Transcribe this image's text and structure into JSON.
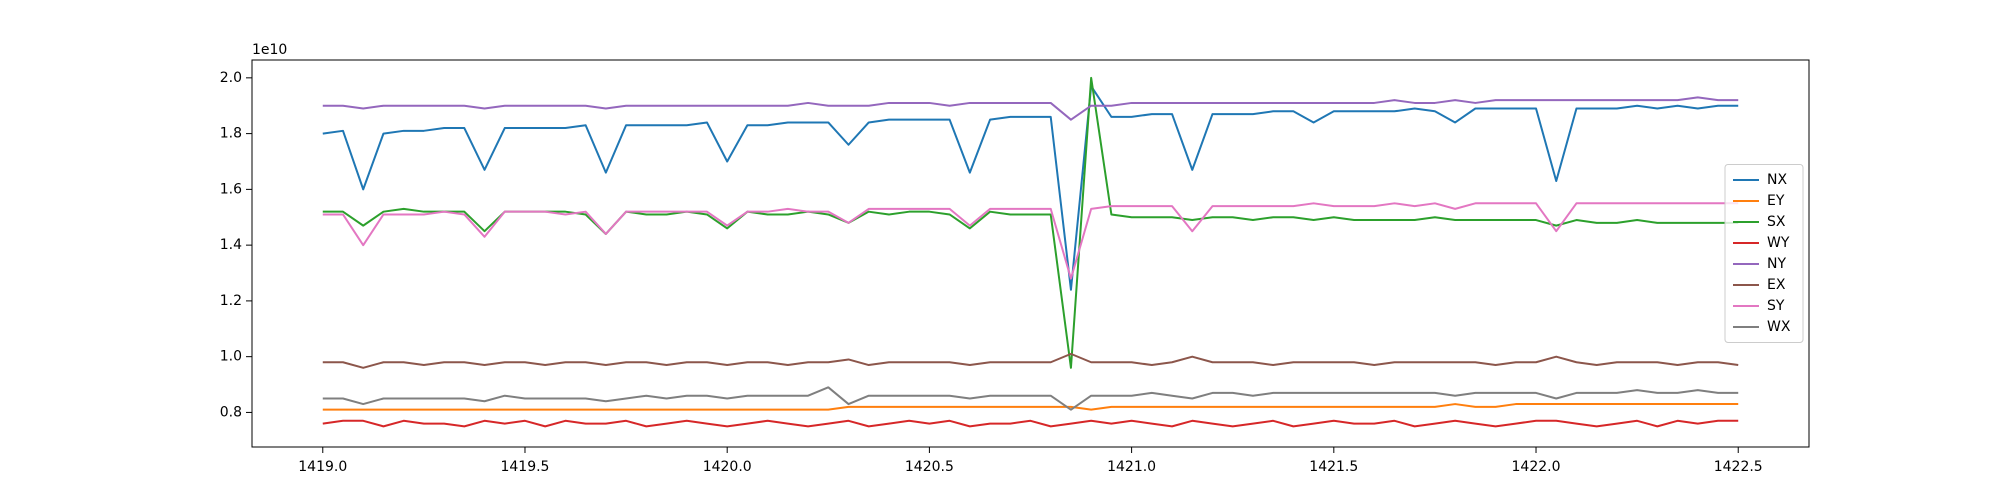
{
  "chart_data": {
    "type": "line",
    "y_offset_label": "1e10",
    "x": [
      1419.0,
      1419.05,
      1419.1,
      1419.15,
      1419.2,
      1419.25,
      1419.3,
      1419.35,
      1419.4,
      1419.45,
      1419.5,
      1419.55,
      1419.6,
      1419.65,
      1419.7,
      1419.75,
      1419.8,
      1419.85,
      1419.9,
      1419.95,
      1420.0,
      1420.05,
      1420.1,
      1420.15,
      1420.2,
      1420.25,
      1420.3,
      1420.35,
      1420.4,
      1420.45,
      1420.5,
      1420.55,
      1420.6,
      1420.65,
      1420.7,
      1420.75,
      1420.8,
      1420.85,
      1420.9,
      1420.95,
      1421.0,
      1421.05,
      1421.1,
      1421.15,
      1421.2,
      1421.25,
      1421.3,
      1421.35,
      1421.4,
      1421.45,
      1421.5,
      1421.55,
      1421.6,
      1421.65,
      1421.7,
      1421.75,
      1421.8,
      1421.85,
      1421.9,
      1421.95,
      1422.0,
      1422.05,
      1422.1,
      1422.15,
      1422.2,
      1422.25,
      1422.3,
      1422.35,
      1422.4,
      1422.45,
      1422.5
    ],
    "series": [
      {
        "name": "NX",
        "color": "#1f77b4",
        "values": [
          1.8,
          1.81,
          1.6,
          1.8,
          1.81,
          1.81,
          1.82,
          1.82,
          1.67,
          1.82,
          1.82,
          1.82,
          1.82,
          1.83,
          1.66,
          1.83,
          1.83,
          1.83,
          1.83,
          1.84,
          1.7,
          1.83,
          1.83,
          1.84,
          1.84,
          1.84,
          1.76,
          1.84,
          1.85,
          1.85,
          1.85,
          1.85,
          1.66,
          1.85,
          1.86,
          1.86,
          1.86,
          1.24,
          1.97,
          1.86,
          1.86,
          1.87,
          1.87,
          1.67,
          1.87,
          1.87,
          1.87,
          1.88,
          1.88,
          1.84,
          1.88,
          1.88,
          1.88,
          1.88,
          1.89,
          1.88,
          1.84,
          1.89,
          1.89,
          1.89,
          1.89,
          1.63,
          1.89,
          1.89,
          1.89,
          1.9,
          1.89,
          1.9,
          1.89,
          1.9,
          1.9
        ]
      },
      {
        "name": "EY",
        "color": "#ff7f0e",
        "values": [
          0.81,
          0.81,
          0.81,
          0.81,
          0.81,
          0.81,
          0.81,
          0.81,
          0.81,
          0.81,
          0.81,
          0.81,
          0.81,
          0.81,
          0.81,
          0.81,
          0.81,
          0.81,
          0.81,
          0.81,
          0.81,
          0.81,
          0.81,
          0.81,
          0.81,
          0.81,
          0.82,
          0.82,
          0.82,
          0.82,
          0.82,
          0.82,
          0.82,
          0.82,
          0.82,
          0.82,
          0.82,
          0.82,
          0.81,
          0.82,
          0.82,
          0.82,
          0.82,
          0.82,
          0.82,
          0.82,
          0.82,
          0.82,
          0.82,
          0.82,
          0.82,
          0.82,
          0.82,
          0.82,
          0.82,
          0.82,
          0.83,
          0.82,
          0.82,
          0.83,
          0.83,
          0.83,
          0.83,
          0.83,
          0.83,
          0.83,
          0.83,
          0.83,
          0.83,
          0.83,
          0.83
        ]
      },
      {
        "name": "SX",
        "color": "#2ca02c",
        "values": [
          1.52,
          1.52,
          1.47,
          1.52,
          1.53,
          1.52,
          1.52,
          1.52,
          1.45,
          1.52,
          1.52,
          1.52,
          1.52,
          1.51,
          1.44,
          1.52,
          1.51,
          1.51,
          1.52,
          1.51,
          1.46,
          1.52,
          1.51,
          1.51,
          1.52,
          1.51,
          1.48,
          1.52,
          1.51,
          1.52,
          1.52,
          1.51,
          1.46,
          1.52,
          1.51,
          1.51,
          1.51,
          0.96,
          2.0,
          1.51,
          1.5,
          1.5,
          1.5,
          1.49,
          1.5,
          1.5,
          1.49,
          1.5,
          1.5,
          1.49,
          1.5,
          1.49,
          1.49,
          1.49,
          1.49,
          1.5,
          1.49,
          1.49,
          1.49,
          1.49,
          1.49,
          1.47,
          1.49,
          1.48,
          1.48,
          1.49,
          1.48,
          1.48,
          1.48,
          1.48,
          1.48
        ]
      },
      {
        "name": "WY",
        "color": "#d62728",
        "values": [
          0.76,
          0.77,
          0.77,
          0.75,
          0.77,
          0.76,
          0.76,
          0.75,
          0.77,
          0.76,
          0.77,
          0.75,
          0.77,
          0.76,
          0.76,
          0.77,
          0.75,
          0.76,
          0.77,
          0.76,
          0.75,
          0.76,
          0.77,
          0.76,
          0.75,
          0.76,
          0.77,
          0.75,
          0.76,
          0.77,
          0.76,
          0.77,
          0.75,
          0.76,
          0.76,
          0.77,
          0.75,
          0.76,
          0.77,
          0.76,
          0.77,
          0.76,
          0.75,
          0.77,
          0.76,
          0.75,
          0.76,
          0.77,
          0.75,
          0.76,
          0.77,
          0.76,
          0.76,
          0.77,
          0.75,
          0.76,
          0.77,
          0.76,
          0.75,
          0.76,
          0.77,
          0.77,
          0.76,
          0.75,
          0.76,
          0.77,
          0.75,
          0.77,
          0.76,
          0.77,
          0.77
        ]
      },
      {
        "name": "NY",
        "color": "#9467bd",
        "values": [
          1.9,
          1.9,
          1.89,
          1.9,
          1.9,
          1.9,
          1.9,
          1.9,
          1.89,
          1.9,
          1.9,
          1.9,
          1.9,
          1.9,
          1.89,
          1.9,
          1.9,
          1.9,
          1.9,
          1.9,
          1.9,
          1.9,
          1.9,
          1.9,
          1.91,
          1.9,
          1.9,
          1.9,
          1.91,
          1.91,
          1.91,
          1.9,
          1.91,
          1.91,
          1.91,
          1.91,
          1.91,
          1.85,
          1.9,
          1.9,
          1.91,
          1.91,
          1.91,
          1.91,
          1.91,
          1.91,
          1.91,
          1.91,
          1.91,
          1.91,
          1.91,
          1.91,
          1.91,
          1.92,
          1.91,
          1.91,
          1.92,
          1.91,
          1.92,
          1.92,
          1.92,
          1.92,
          1.92,
          1.92,
          1.92,
          1.92,
          1.92,
          1.92,
          1.93,
          1.92,
          1.92
        ]
      },
      {
        "name": "EX",
        "color": "#8c564b",
        "values": [
          0.98,
          0.98,
          0.96,
          0.98,
          0.98,
          0.97,
          0.98,
          0.98,
          0.97,
          0.98,
          0.98,
          0.97,
          0.98,
          0.98,
          0.97,
          0.98,
          0.98,
          0.97,
          0.98,
          0.98,
          0.97,
          0.98,
          0.98,
          0.97,
          0.98,
          0.98,
          0.99,
          0.97,
          0.98,
          0.98,
          0.98,
          0.98,
          0.97,
          0.98,
          0.98,
          0.98,
          0.98,
          1.01,
          0.98,
          0.98,
          0.98,
          0.97,
          0.98,
          1.0,
          0.98,
          0.98,
          0.98,
          0.97,
          0.98,
          0.98,
          0.98,
          0.98,
          0.97,
          0.98,
          0.98,
          0.98,
          0.98,
          0.98,
          0.97,
          0.98,
          0.98,
          1.0,
          0.98,
          0.97,
          0.98,
          0.98,
          0.98,
          0.97,
          0.98,
          0.98,
          0.97
        ]
      },
      {
        "name": "SY",
        "color": "#e377c2",
        "values": [
          1.51,
          1.51,
          1.4,
          1.51,
          1.51,
          1.51,
          1.52,
          1.51,
          1.43,
          1.52,
          1.52,
          1.52,
          1.51,
          1.52,
          1.44,
          1.52,
          1.52,
          1.52,
          1.52,
          1.52,
          1.47,
          1.52,
          1.52,
          1.53,
          1.52,
          1.52,
          1.48,
          1.53,
          1.53,
          1.53,
          1.53,
          1.53,
          1.47,
          1.53,
          1.53,
          1.53,
          1.53,
          1.28,
          1.53,
          1.54,
          1.54,
          1.54,
          1.54,
          1.45,
          1.54,
          1.54,
          1.54,
          1.54,
          1.54,
          1.55,
          1.54,
          1.54,
          1.54,
          1.55,
          1.54,
          1.55,
          1.53,
          1.55,
          1.55,
          1.55,
          1.55,
          1.45,
          1.55,
          1.55,
          1.55,
          1.55,
          1.55,
          1.55,
          1.55,
          1.55,
          1.55
        ]
      },
      {
        "name": "WX",
        "color": "#7f7f7f",
        "values": [
          0.85,
          0.85,
          0.83,
          0.85,
          0.85,
          0.85,
          0.85,
          0.85,
          0.84,
          0.86,
          0.85,
          0.85,
          0.85,
          0.85,
          0.84,
          0.85,
          0.86,
          0.85,
          0.86,
          0.86,
          0.85,
          0.86,
          0.86,
          0.86,
          0.86,
          0.89,
          0.83,
          0.86,
          0.86,
          0.86,
          0.86,
          0.86,
          0.85,
          0.86,
          0.86,
          0.86,
          0.86,
          0.81,
          0.86,
          0.86,
          0.86,
          0.87,
          0.86,
          0.85,
          0.87,
          0.87,
          0.86,
          0.87,
          0.87,
          0.87,
          0.87,
          0.87,
          0.87,
          0.87,
          0.87,
          0.87,
          0.86,
          0.87,
          0.87,
          0.87,
          0.87,
          0.85,
          0.87,
          0.87,
          0.87,
          0.88,
          0.87,
          0.87,
          0.88,
          0.87,
          0.87
        ]
      }
    ],
    "xlim": [
      1418.825,
      1422.675
    ],
    "ylim": [
      0.676,
      2.064
    ],
    "xticks": [
      {
        "value": 1419.0,
        "label": "1419.0"
      },
      {
        "value": 1419.5,
        "label": "1419.5"
      },
      {
        "value": 1420.0,
        "label": "1420.0"
      },
      {
        "value": 1420.5,
        "label": "1420.5"
      },
      {
        "value": 1421.0,
        "label": "1421.0"
      },
      {
        "value": 1421.5,
        "label": "1421.5"
      },
      {
        "value": 1422.0,
        "label": "1422.0"
      },
      {
        "value": 1422.5,
        "label": "1422.5"
      }
    ],
    "yticks": [
      {
        "value": 0.8,
        "label": "0.8"
      },
      {
        "value": 1.0,
        "label": "1.0"
      },
      {
        "value": 1.2,
        "label": "1.2"
      },
      {
        "value": 1.4,
        "label": "1.4"
      },
      {
        "value": 1.6,
        "label": "1.6"
      },
      {
        "value": 1.8,
        "label": "1.8"
      },
      {
        "value": 2.0,
        "label": "2.0"
      }
    ],
    "grid": false,
    "legend": "center right"
  }
}
